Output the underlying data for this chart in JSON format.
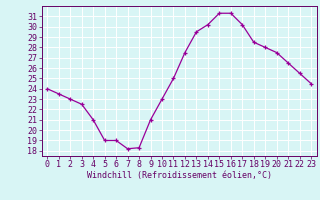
{
  "x": [
    0,
    1,
    2,
    3,
    4,
    5,
    6,
    7,
    8,
    9,
    10,
    11,
    12,
    13,
    14,
    15,
    16,
    17,
    18,
    19,
    20,
    21,
    22,
    23
  ],
  "y": [
    24.0,
    23.5,
    23.0,
    22.5,
    21.0,
    19.0,
    19.0,
    18.2,
    18.3,
    21.0,
    23.0,
    25.0,
    27.5,
    29.5,
    30.2,
    31.3,
    31.3,
    30.2,
    28.5,
    28.0,
    27.5,
    26.5,
    25.5,
    24.5
  ],
  "line_color": "#990099",
  "marker": "+",
  "marker_size": 3,
  "xlabel": "Windchill (Refroidissement éolien,°C)",
  "xlim": [
    -0.5,
    23.5
  ],
  "ylim": [
    17.5,
    32.0
  ],
  "yticks": [
    18,
    19,
    20,
    21,
    22,
    23,
    24,
    25,
    26,
    27,
    28,
    29,
    30,
    31
  ],
  "xticks": [
    0,
    1,
    2,
    3,
    4,
    5,
    6,
    7,
    8,
    9,
    10,
    11,
    12,
    13,
    14,
    15,
    16,
    17,
    18,
    19,
    20,
    21,
    22,
    23
  ],
  "bg_color": "#d8f5f5",
  "grid_color": "#ffffff",
  "tick_color": "#660066",
  "label_color": "#660066",
  "xlabel_fontsize": 6,
  "tick_fontsize": 6
}
